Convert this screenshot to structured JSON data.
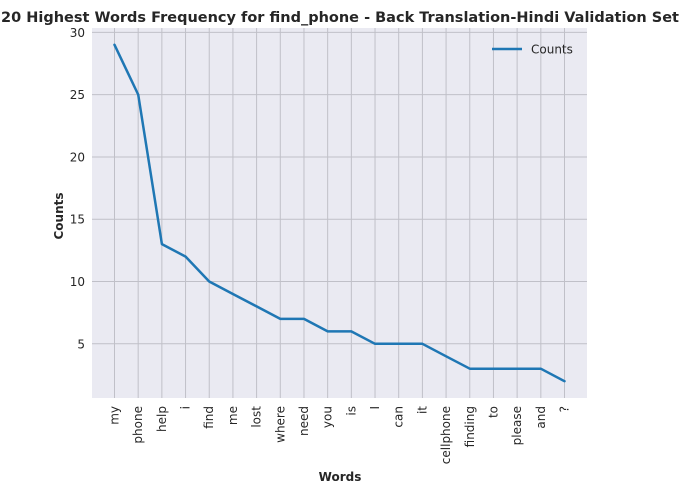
{
  "chart_data": {
    "type": "line",
    "title": "20 Highest Words Frequency for find_phone - Back Translation-Hindi Validation Set",
    "xlabel": "Words",
    "ylabel": "Counts",
    "categories": [
      "my",
      "phone",
      "help",
      "i",
      "find",
      "me",
      "lost",
      "where",
      "need",
      "you",
      "is",
      "I",
      "can",
      "it",
      "cellphone",
      "finding",
      "to",
      "please",
      "and",
      "?"
    ],
    "series": [
      {
        "name": "Counts",
        "values": [
          29,
          25,
          13,
          12,
          10,
          9,
          8,
          7,
          7,
          6,
          6,
          5,
          5,
          5,
          4,
          3,
          3,
          3,
          3,
          2
        ]
      }
    ],
    "ylim": [
      0.65,
      30.35
    ],
    "yticks": [
      5,
      10,
      15,
      20,
      25,
      30
    ],
    "grid": true,
    "legend": "top-right",
    "colors": {
      "line": "#1f77b4",
      "background": "#eaeaf2",
      "grid": "#c0c0c8"
    }
  }
}
